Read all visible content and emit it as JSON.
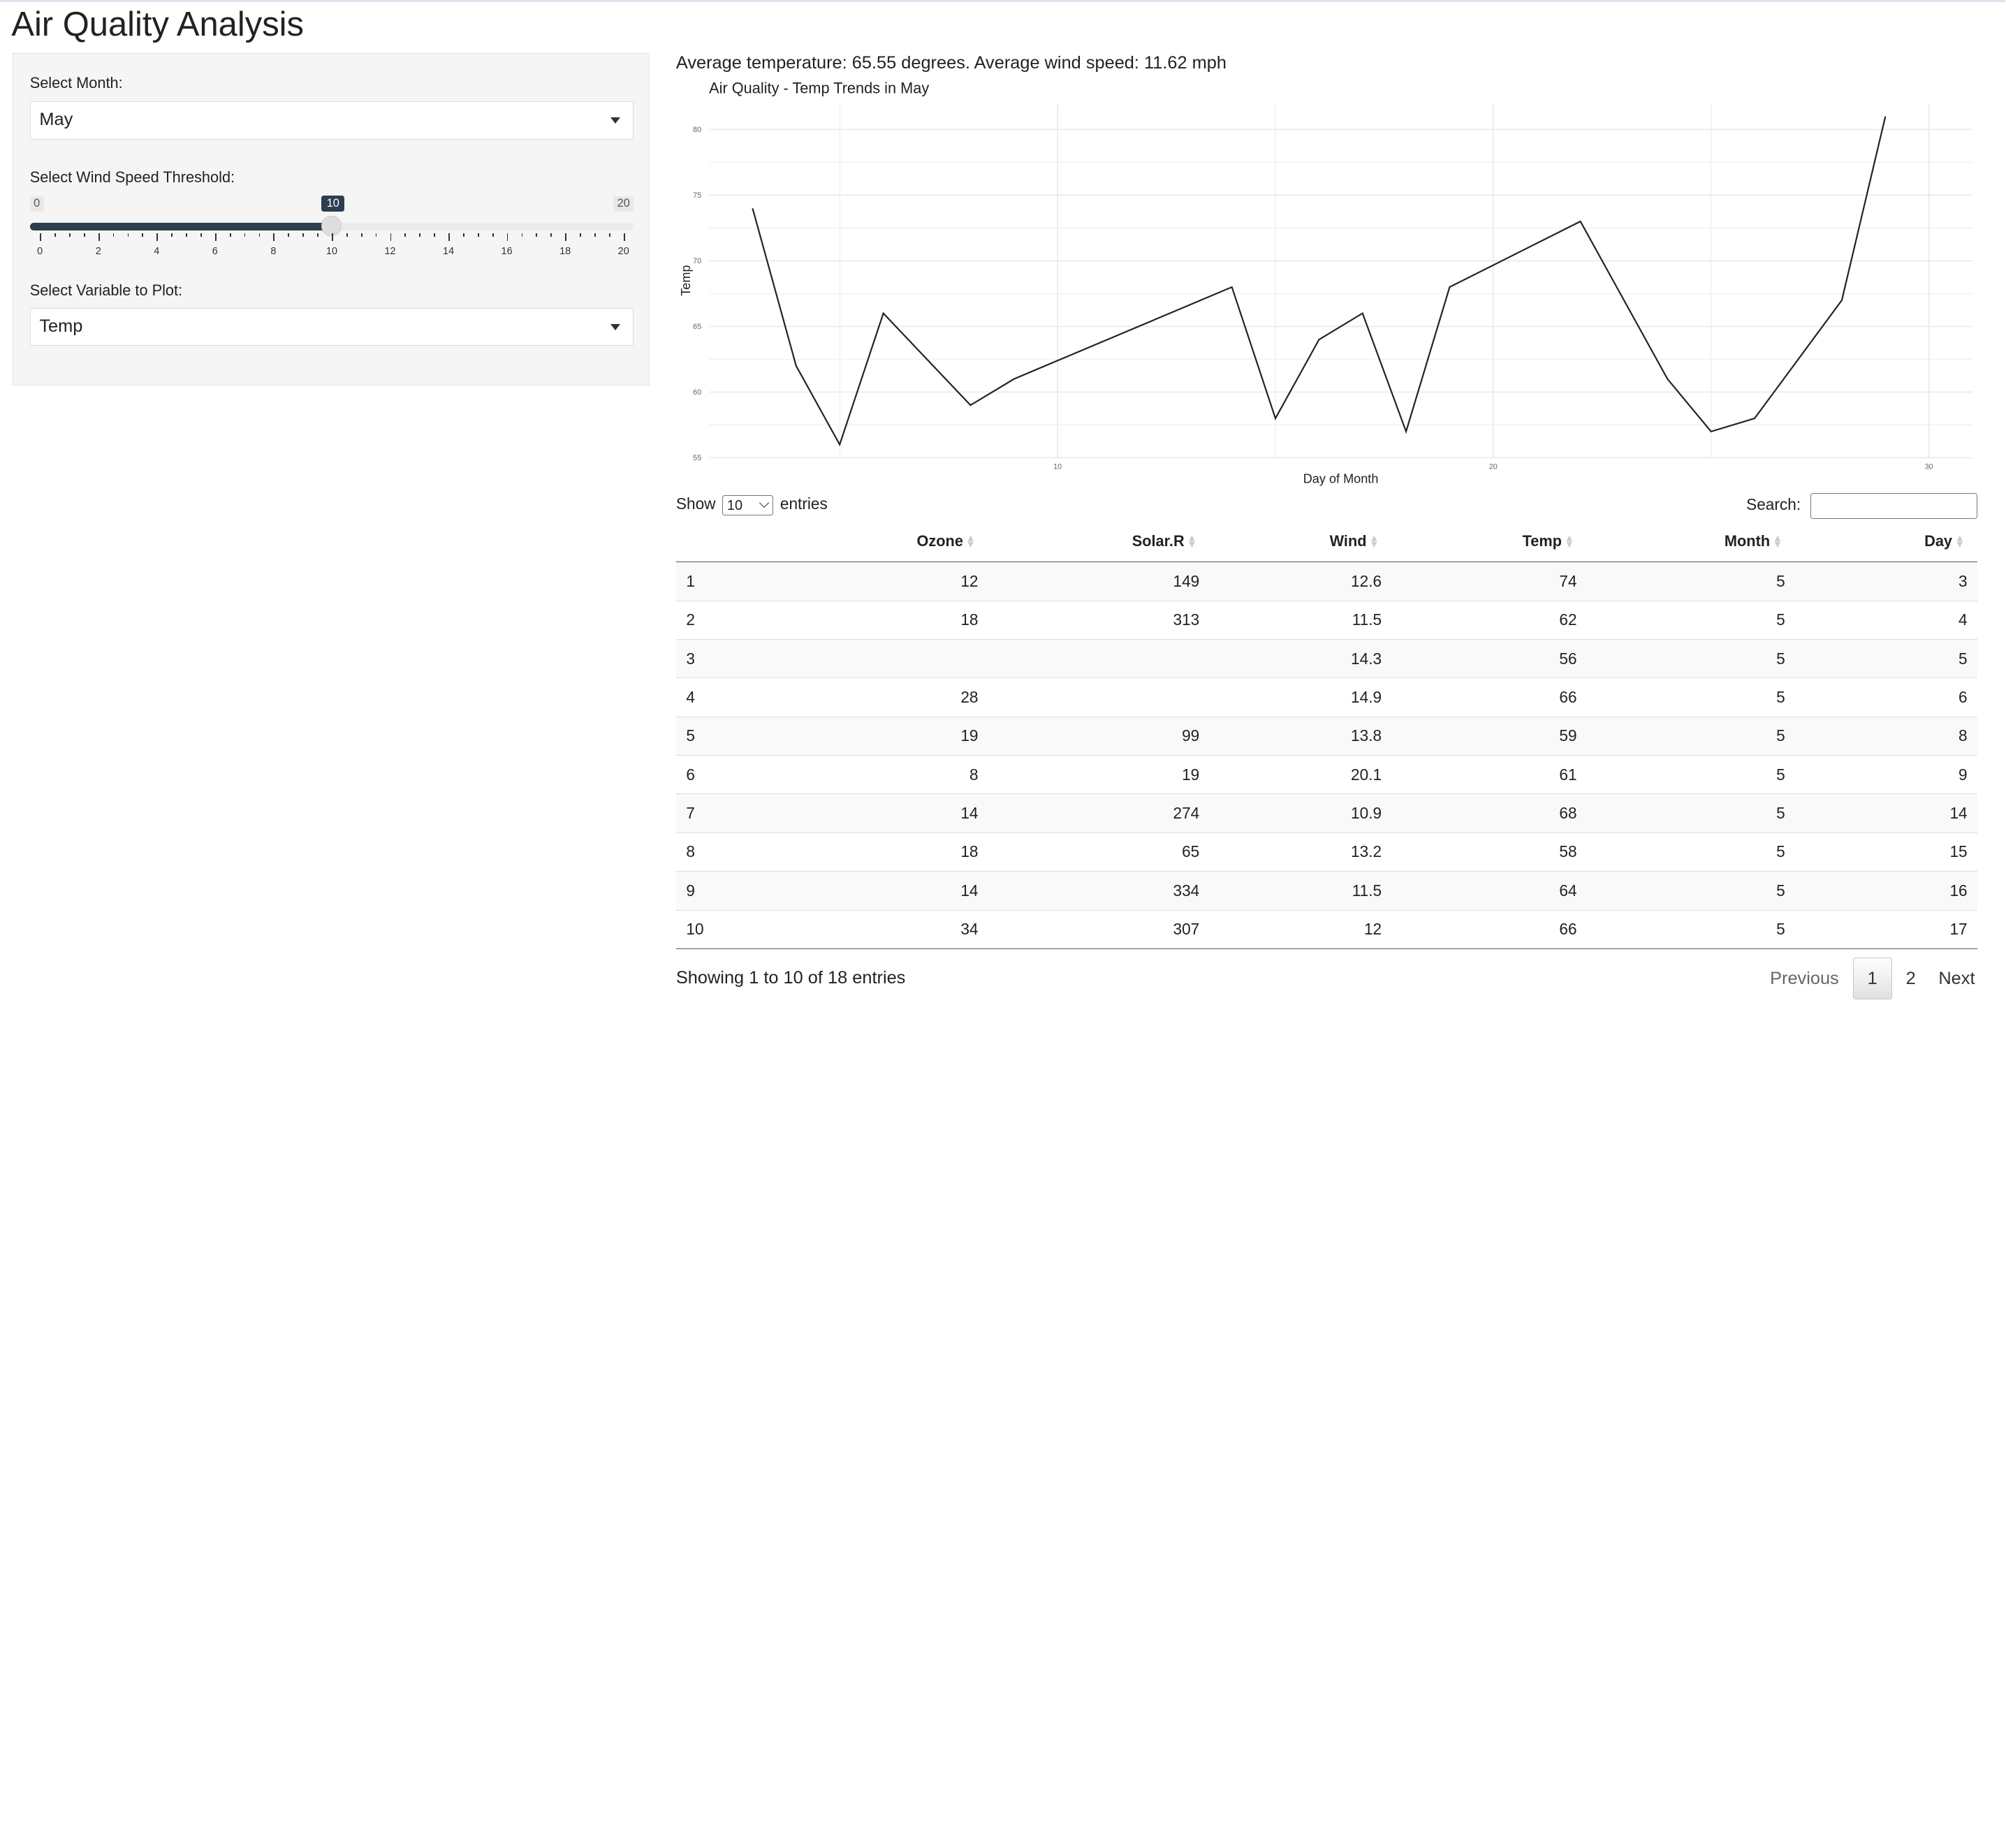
{
  "app_title": "Air Quality Analysis",
  "sidebar": {
    "month_label": "Select Month:",
    "month_value": "May",
    "wind_label": "Select Wind Speed Threshold:",
    "wind_slider": {
      "min": 0,
      "max": 20,
      "value": 10,
      "min_label": "0",
      "max_label": "20",
      "value_label": "10",
      "tick_labels": [
        "0",
        "2",
        "4",
        "6",
        "8",
        "10",
        "12",
        "14",
        "16",
        "18",
        "20"
      ]
    },
    "variable_label": "Select Variable to Plot:",
    "variable_value": "Temp"
  },
  "summary_text": "Average temperature: 65.55 degrees. Average wind speed: 11.62 mph",
  "chart_data": {
    "type": "line",
    "title": "Air Quality - Temp Trends in May",
    "xlabel": "Day of Month",
    "ylabel": "Temp",
    "x": [
      3,
      4,
      5,
      6,
      8,
      9,
      14,
      15,
      16,
      17,
      18,
      19,
      22,
      24,
      25,
      26,
      28,
      29
    ],
    "values": [
      74,
      62,
      56,
      66,
      59,
      61,
      68,
      58,
      64,
      66,
      57,
      68,
      73,
      61,
      57,
      58,
      67,
      81
    ],
    "xlim": [
      2,
      31
    ],
    "ylim": [
      55,
      82
    ],
    "x_ticks": [
      10,
      20,
      30
    ],
    "x_tick_labels": [
      "10",
      "20",
      "30"
    ],
    "y_ticks": [
      55,
      60,
      65,
      70,
      75,
      80
    ],
    "y_tick_labels": [
      "55",
      "60",
      "65",
      "70",
      "75",
      "80"
    ],
    "grid": true,
    "line_color": "#222222"
  },
  "table": {
    "length_label_before": "Show",
    "length_value": "10",
    "length_label_after": "entries",
    "search_label": "Search:",
    "columns": [
      "",
      "Ozone",
      "Solar.R",
      "Wind",
      "Temp",
      "Month",
      "Day"
    ],
    "rows": [
      [
        "1",
        "12",
        "149",
        "12.6",
        "74",
        "5",
        "3"
      ],
      [
        "2",
        "18",
        "313",
        "11.5",
        "62",
        "5",
        "4"
      ],
      [
        "3",
        "",
        "",
        "14.3",
        "56",
        "5",
        "5"
      ],
      [
        "4",
        "28",
        "",
        "14.9",
        "66",
        "5",
        "6"
      ],
      [
        "5",
        "19",
        "99",
        "13.8",
        "59",
        "5",
        "8"
      ],
      [
        "6",
        "8",
        "19",
        "20.1",
        "61",
        "5",
        "9"
      ],
      [
        "7",
        "14",
        "274",
        "10.9",
        "68",
        "5",
        "14"
      ],
      [
        "8",
        "18",
        "65",
        "13.2",
        "58",
        "5",
        "15"
      ],
      [
        "9",
        "14",
        "334",
        "11.5",
        "64",
        "5",
        "16"
      ],
      [
        "10",
        "34",
        "307",
        "12",
        "66",
        "5",
        "17"
      ]
    ],
    "info": "Showing 1 to 10 of 18 entries",
    "paging": {
      "previous": "Previous",
      "pages": [
        "1",
        "2"
      ],
      "current": "1",
      "next": "Next"
    }
  }
}
